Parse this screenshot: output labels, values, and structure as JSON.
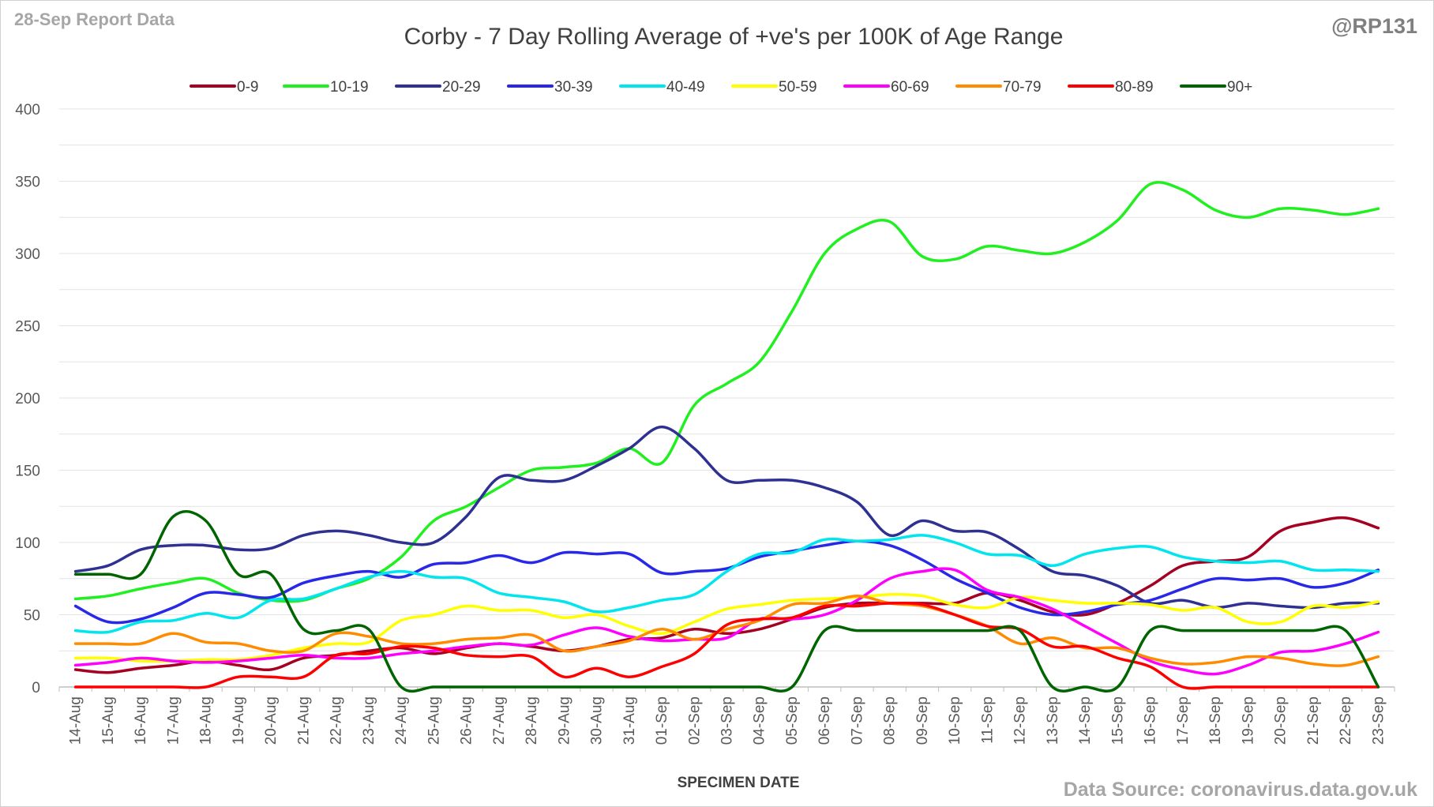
{
  "header": {
    "report_label": "28-Sep Report Data",
    "author_handle": "@RP131"
  },
  "footer": {
    "source": "Data Source: coronavirus.data.gov.uk"
  },
  "chart_data": {
    "type": "line",
    "title": "Corby - 7 Day Rolling Average of +ve's per 100K of Age Range",
    "xlabel": "SPECIMEN DATE",
    "ylabel": "",
    "ylim": [
      0,
      400
    ],
    "yticks": [
      0,
      50,
      100,
      150,
      200,
      250,
      300,
      350,
      400
    ],
    "grid": true,
    "legend_position": "top",
    "categories": [
      "14-Aug",
      "15-Aug",
      "16-Aug",
      "17-Aug",
      "18-Aug",
      "19-Aug",
      "20-Aug",
      "21-Aug",
      "22-Aug",
      "23-Aug",
      "24-Aug",
      "25-Aug",
      "26-Aug",
      "27-Aug",
      "28-Aug",
      "29-Aug",
      "30-Aug",
      "31-Aug",
      "01-Sep",
      "02-Sep",
      "03-Sep",
      "04-Sep",
      "05-Sep",
      "06-Sep",
      "07-Sep",
      "08-Sep",
      "09-Sep",
      "10-Sep",
      "11-Sep",
      "12-Sep",
      "13-Sep",
      "14-Sep",
      "15-Sep",
      "16-Sep",
      "17-Sep",
      "18-Sep",
      "19-Sep",
      "20-Sep",
      "21-Sep",
      "22-Sep",
      "23-Sep"
    ],
    "series": [
      {
        "name": "0-9",
        "color": "#a50021",
        "values": [
          12,
          10,
          13,
          15,
          18,
          15,
          12,
          20,
          22,
          25,
          27,
          23,
          27,
          30,
          28,
          25,
          28,
          33,
          34,
          40,
          37,
          40,
          47,
          55,
          58,
          58,
          58,
          58,
          65,
          60,
          52,
          50,
          58,
          70,
          84,
          87,
          90,
          108,
          114,
          117,
          110
        ]
      },
      {
        "name": "10-19",
        "color": "#20ef20",
        "values": [
          61,
          63,
          68,
          72,
          75,
          65,
          60,
          60,
          68,
          75,
          90,
          115,
          125,
          138,
          150,
          152,
          155,
          165,
          155,
          195,
          210,
          225,
          260,
          300,
          317,
          322,
          298,
          296,
          305,
          302,
          300,
          308,
          323,
          348,
          344,
          330,
          325,
          331,
          330,
          327,
          331
        ]
      },
      {
        "name": "20-29",
        "color": "#2e3192",
        "values": [
          80,
          84,
          95,
          98,
          98,
          95,
          96,
          105,
          108,
          105,
          100,
          100,
          118,
          145,
          143,
          143,
          153,
          165,
          180,
          165,
          143,
          143,
          143,
          138,
          128,
          105,
          115,
          108,
          107,
          95,
          80,
          77,
          70,
          58,
          60,
          55,
          58,
          56,
          55,
          58,
          58
        ]
      },
      {
        "name": "30-39",
        "color": "#2828e8",
        "values": [
          56,
          45,
          47,
          55,
          65,
          64,
          62,
          72,
          77,
          80,
          76,
          85,
          86,
          91,
          86,
          93,
          92,
          92,
          79,
          80,
          82,
          90,
          94,
          98,
          101,
          98,
          88,
          75,
          65,
          55,
          50,
          52,
          57,
          60,
          68,
          75,
          74,
          75,
          69,
          72,
          81
        ]
      },
      {
        "name": "40-49",
        "color": "#00e5ee",
        "values": [
          39,
          38,
          45,
          46,
          51,
          48,
          60,
          61,
          68,
          76,
          80,
          76,
          75,
          65,
          62,
          59,
          52,
          55,
          60,
          64,
          80,
          92,
          93,
          102,
          101,
          102,
          105,
          100,
          92,
          91,
          84,
          92,
          96,
          97,
          90,
          87,
          86,
          87,
          81,
          81,
          80
        ]
      },
      {
        "name": "50-59",
        "color": "#ffff00",
        "values": [
          20,
          20,
          18,
          18,
          19,
          19,
          22,
          27,
          30,
          31,
          46,
          50,
          56,
          53,
          53,
          48,
          50,
          42,
          37,
          45,
          54,
          57,
          60,
          61,
          62,
          64,
          63,
          57,
          55,
          62,
          60,
          58,
          58,
          57,
          53,
          55,
          45,
          45,
          56,
          55,
          59
        ]
      },
      {
        "name": "60-69",
        "color": "#ff00ff",
        "values": [
          15,
          17,
          20,
          18,
          17,
          18,
          20,
          22,
          20,
          20,
          23,
          25,
          28,
          30,
          29,
          36,
          41,
          35,
          32,
          33,
          34,
          47,
          47,
          50,
          60,
          75,
          80,
          81,
          67,
          62,
          54,
          42,
          30,
          18,
          12,
          9,
          15,
          24,
          25,
          30,
          38
        ]
      },
      {
        "name": "70-79",
        "color": "#ff8c00",
        "values": [
          30,
          30,
          30,
          37,
          31,
          30,
          25,
          25,
          37,
          35,
          30,
          30,
          33,
          34,
          36,
          25,
          28,
          32,
          40,
          33,
          40,
          46,
          57,
          58,
          63,
          58,
          56,
          50,
          42,
          30,
          34,
          27,
          27,
          20,
          16,
          17,
          21,
          20,
          16,
          15,
          21
        ]
      },
      {
        "name": "80-89",
        "color": "#ff0000",
        "values": [
          0,
          0,
          0,
          0,
          0,
          7,
          7,
          7,
          22,
          23,
          28,
          27,
          22,
          21,
          21,
          7,
          13,
          7,
          14,
          23,
          43,
          47,
          48,
          56,
          56,
          58,
          57,
          50,
          42,
          40,
          28,
          28,
          20,
          14,
          0,
          0,
          0,
          0,
          0,
          0,
          0
        ]
      },
      {
        "name": "90+",
        "color": "#006400",
        "values": [
          78,
          78,
          78,
          118,
          115,
          78,
          78,
          40,
          39,
          40,
          0,
          0,
          0,
          0,
          0,
          0,
          0,
          0,
          0,
          0,
          0,
          0,
          0,
          39,
          39,
          39,
          39,
          39,
          39,
          39,
          0,
          0,
          0,
          39,
          39,
          39,
          39,
          39,
          39,
          39,
          0
        ]
      }
    ]
  }
}
